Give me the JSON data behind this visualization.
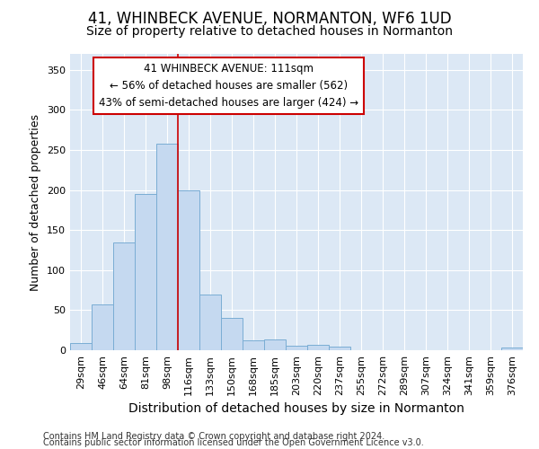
{
  "title": "41, WHINBECK AVENUE, NORMANTON, WF6 1UD",
  "subtitle": "Size of property relative to detached houses in Normanton",
  "xlabel": "Distribution of detached houses by size in Normanton",
  "ylabel": "Number of detached properties",
  "categories": [
    "29sqm",
    "46sqm",
    "64sqm",
    "81sqm",
    "98sqm",
    "116sqm",
    "133sqm",
    "150sqm",
    "168sqm",
    "185sqm",
    "203sqm",
    "220sqm",
    "237sqm",
    "255sqm",
    "272sqm",
    "289sqm",
    "307sqm",
    "324sqm",
    "341sqm",
    "359sqm",
    "376sqm"
  ],
  "values": [
    9,
    57,
    135,
    195,
    258,
    200,
    70,
    40,
    12,
    13,
    6,
    7,
    4,
    0,
    0,
    0,
    0,
    0,
    0,
    0,
    3
  ],
  "bar_color": "#c5d9f0",
  "bar_edge_color": "#7aadd4",
  "vline_x": 5.0,
  "vline_color": "#cc0000",
  "annotation_line1": "41 WHINBECK AVENUE: 111sqm",
  "annotation_line2": "← 56% of detached houses are smaller (562)",
  "annotation_line3": "43% of semi-detached houses are larger (424) →",
  "annotation_box_color": "#ffffff",
  "annotation_box_edge": "#cc0000",
  "ylim": [
    0,
    370
  ],
  "yticks": [
    0,
    50,
    100,
    150,
    200,
    250,
    300,
    350
  ],
  "fig_bg_color": "#ffffff",
  "plot_bg_color": "#dce8f5",
  "grid_color": "#ffffff",
  "footer1": "Contains HM Land Registry data © Crown copyright and database right 2024.",
  "footer2": "Contains public sector information licensed under the Open Government Licence v3.0.",
  "title_fontsize": 12,
  "subtitle_fontsize": 10,
  "xlabel_fontsize": 10,
  "ylabel_fontsize": 9,
  "tick_fontsize": 8,
  "annotation_fontsize": 8.5,
  "footer_fontsize": 7
}
